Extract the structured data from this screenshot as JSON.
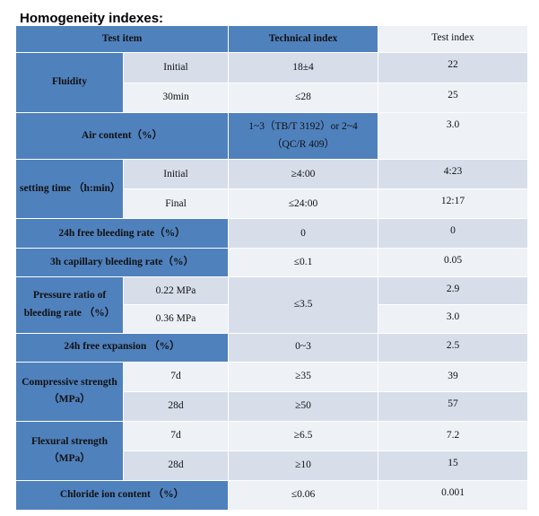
{
  "title": "Homogeneity indexes:",
  "headers": {
    "test_item": "Test item",
    "technical_index": "Technical index",
    "test_index": "Test index"
  },
  "rows": {
    "fluidity": {
      "label": "Fluidity",
      "initial": {
        "sub": "Initial",
        "tech": "18±4",
        "test": "22"
      },
      "min30": {
        "sub": "30min",
        "tech": "≤28",
        "test": "25"
      }
    },
    "air": {
      "label": "Air content（%）",
      "tech_line1": "1~3（TB/T 3192）or 2~4",
      "tech_line2": "（QC/R 409）",
      "test": "3.0"
    },
    "setting": {
      "label": "setting time （h:min）",
      "initial": {
        "sub": "Initial",
        "tech": "≥4:00",
        "test": "4:23"
      },
      "final": {
        "sub": "Final",
        "tech": "≤24:00",
        "test": "12:17"
      }
    },
    "bleed24": {
      "label": "24h free bleeding rate（%）",
      "tech": "0",
      "test": "0"
    },
    "bleed3": {
      "label": "3h capillary bleeding rate（%）",
      "tech": "≤0.1",
      "test": "0.05"
    },
    "pressure": {
      "label_line1": "Pressure ratio of",
      "label_line2": "bleeding rate （%）",
      "p1": {
        "sub": "0.22 MPa",
        "test": "2.9"
      },
      "p2": {
        "sub": "0.36 MPa",
        "test": "3.0"
      },
      "tech": "≤3.5"
    },
    "expansion": {
      "label": "24h free expansion （%）",
      "tech": "0~3",
      "test": "2.5"
    },
    "compressive": {
      "label_line1": "Compressive strength",
      "label_line2": "（MPa）",
      "d7": {
        "sub": "7d",
        "tech": "≥35",
        "test": "39"
      },
      "d28": {
        "sub": "28d",
        "tech": "≥50",
        "test": "57"
      }
    },
    "flexural": {
      "label_line1": "Flexural strength",
      "label_line2": "（MPa）",
      "d7": {
        "sub": "7d",
        "tech": "≥6.5",
        "test": "7.2"
      },
      "d28": {
        "sub": "28d",
        "tech": "≥10",
        "test": "15"
      }
    },
    "chloride": {
      "label": "Chloride ion content （%）",
      "tech": "≤0.06",
      "test": "0.001"
    }
  }
}
